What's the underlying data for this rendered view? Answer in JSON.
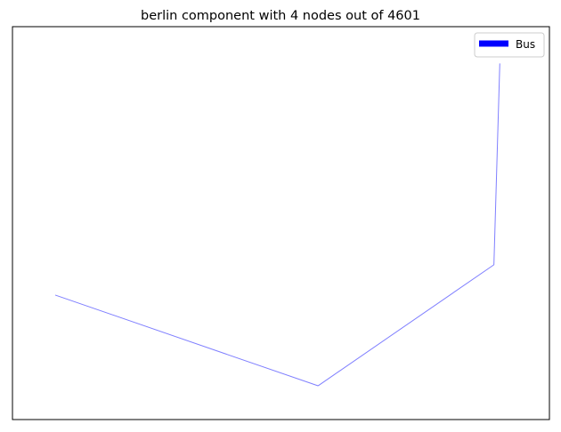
{
  "chart_data": {
    "type": "line",
    "title": "berlin component with 4 nodes out of 4601",
    "xlabel": "",
    "ylabel": "",
    "grid": false,
    "axes_ticks": false,
    "legend": {
      "placement": "top-right",
      "entries": [
        {
          "label": "Bus",
          "color": "#0000ff"
        }
      ]
    },
    "series": [
      {
        "name": "Bus",
        "color": "#0000ff",
        "opacity": 0.5,
        "edges": [
          {
            "from": [
              0.0,
              0.39
            ],
            "to": [
              0.535,
              0.0
            ]
          },
          {
            "from": [
              0.535,
              0.0
            ],
            "to": [
              0.893,
              0.52
            ]
          },
          {
            "from": [
              0.893,
              0.52
            ],
            "to": [
              0.905,
              1.385
            ]
          }
        ]
      }
    ],
    "xlim": [
      -0.087,
      1.006
    ],
    "ylim": [
      -0.145,
      1.543
    ]
  }
}
